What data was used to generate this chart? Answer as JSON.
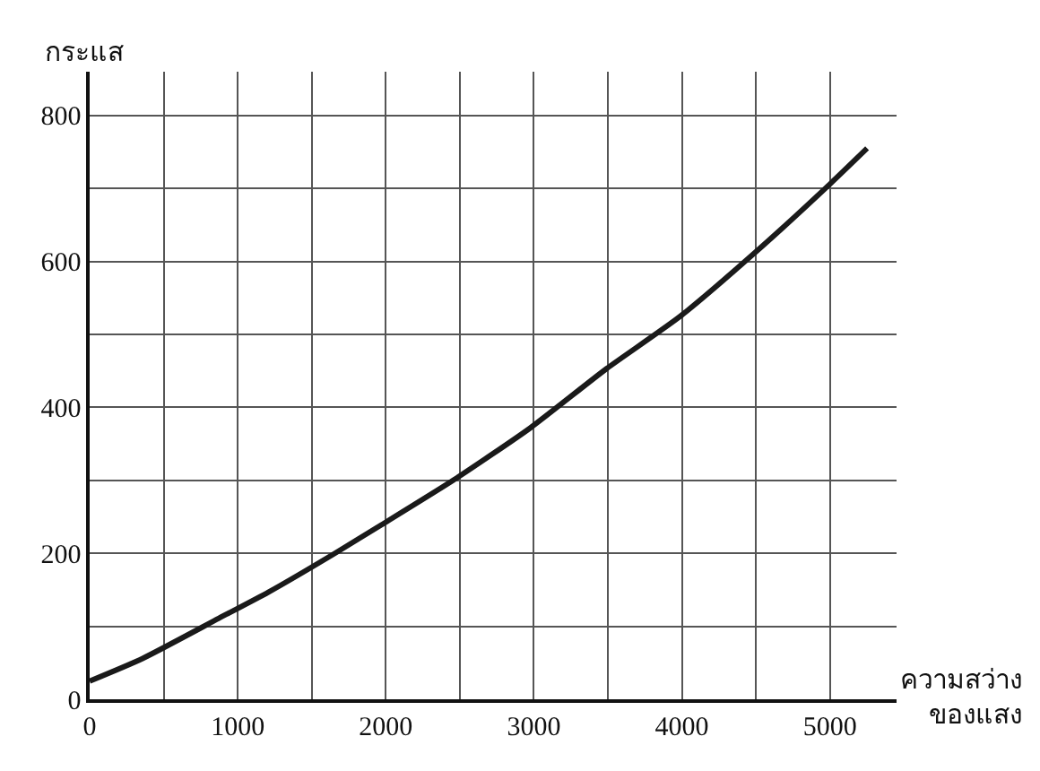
{
  "chart_data": {
    "type": "line",
    "xlabel": "ความสว่าง ของแสง",
    "ylabel": "กระแส",
    "x": [
      0,
      358,
      873,
      1209,
      1656,
      1970,
      2462,
      2977,
      3491,
      3984,
      4499,
      5000,
      5251
    ],
    "series": [
      {
        "color": "#1a1a1a",
        "values": [
          25,
          56,
          111,
          147,
          200,
          239,
          301,
          372,
          453,
          524,
          613,
          706,
          755
        ]
      }
    ],
    "xlim": [
      0,
      5450
    ],
    "ylim": [
      0,
      860
    ],
    "xticks": [
      0,
      {
        "value": 500,
        "label": null
      },
      1000,
      {
        "value": 1500,
        "label": null
      },
      2000,
      {
        "value": 2500,
        "label": null
      },
      3000,
      {
        "value": 3500,
        "label": null
      },
      4000,
      {
        "value": 4500,
        "label": null
      },
      5000
    ],
    "yticks": [
      0,
      {
        "value": 100,
        "label": null
      },
      200,
      {
        "value": 300,
        "label": null
      },
      400,
      {
        "value": 500,
        "label": null
      },
      600,
      {
        "value": 700,
        "label": null
      },
      800
    ],
    "grid": true,
    "marker": "none",
    "line_style": "solid"
  }
}
